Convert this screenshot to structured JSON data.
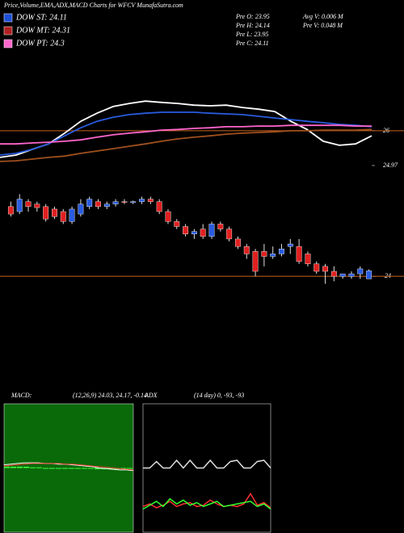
{
  "header": {
    "title": "Price,Volume,EMA,ADX,MACD Charts for WFCV MunafaSutra.com",
    "legend": [
      {
        "name": "DOW ST: 24.11",
        "color": "#1e4fd8"
      },
      {
        "name": "DOW MT: 24.31",
        "color": "#b02020"
      },
      {
        "name": "DOW PT: 24.3",
        "color": "#ff66cc"
      }
    ],
    "info": [
      "Pre  O: 23.95",
      "Pre  H: 24.14",
      "Pre  L: 23.95",
      "Pre  C: 24.11",
      "Avg  V: 0.006  M",
      "Pre  V: 0.048  M"
    ]
  },
  "chart_data": [
    {
      "type": "line",
      "ylim": [
        24.61,
        28.44
      ],
      "yticks": [
        26,
        24.97
      ],
      "reference_line": 26,
      "reference_color": "#c8641e",
      "series": [
        {
          "color": "#ffffff",
          "values": [
            25.21,
            25.28,
            25.45,
            25.61,
            25.93,
            26.28,
            26.52,
            26.72,
            26.81,
            26.88,
            26.84,
            26.81,
            26.76,
            26.74,
            26.76,
            26.69,
            26.64,
            26.57,
            26.28,
            26.04,
            25.69,
            25.57,
            25.61,
            25.85
          ]
        },
        {
          "color": "#2a5ce0",
          "values": [
            25.28,
            25.33,
            25.45,
            25.61,
            25.85,
            26.09,
            26.28,
            26.4,
            26.48,
            26.52,
            26.55,
            26.55,
            26.55,
            26.52,
            26.5,
            26.48,
            26.43,
            26.38,
            26.33,
            26.28,
            26.24,
            26.19,
            26.16,
            26.12
          ]
        },
        {
          "color": "#ff66cc",
          "values": [
            25.61,
            25.61,
            25.64,
            25.66,
            25.69,
            25.73,
            25.81,
            25.88,
            25.93,
            25.97,
            26.02,
            26.04,
            26.07,
            26.09,
            26.12,
            26.12,
            26.14,
            26.14,
            26.16,
            26.16,
            26.16,
            26.16,
            26.14,
            26.14
          ]
        },
        {
          "color": "#a0501e",
          "values": [
            25.09,
            25.11,
            25.16,
            25.21,
            25.25,
            25.33,
            25.4,
            25.47,
            25.54,
            25.61,
            25.69,
            25.76,
            25.81,
            25.85,
            25.9,
            25.93,
            25.95,
            25.97,
            26.0,
            26.0,
            26.02,
            26.02,
            26.02,
            26.04
          ]
        }
      ]
    },
    {
      "type": "candlestick",
      "ylim": [
        22.9,
        25.9
      ],
      "yticks": [
        24
      ],
      "reference_line": 24,
      "reference_color": "#c8641e",
      "up_color": "#2a5ce0",
      "down_color": "#e02020",
      "open": [
        25.4,
        25.3,
        25.5,
        25.45,
        25.4,
        25.35,
        25.3,
        25.1,
        25.25,
        25.4,
        25.5,
        25.4,
        25.45,
        25.5,
        25.48,
        25.5,
        25.55,
        25.5,
        25.3,
        25.1,
        25.0,
        24.85,
        24.95,
        24.8,
        25.05,
        24.95,
        24.75,
        24.6,
        24.5,
        24.5,
        24.4,
        24.45,
        24.6,
        24.6,
        24.45,
        24.25,
        24.2,
        24.1,
        24.0,
        24.0,
        24.05,
        23.95
      ],
      "high": [
        25.5,
        25.65,
        25.55,
        25.5,
        25.45,
        25.4,
        25.35,
        25.4,
        25.55,
        25.6,
        25.55,
        25.5,
        25.55,
        25.55,
        25.52,
        25.6,
        25.6,
        25.55,
        25.35,
        25.15,
        25.05,
        24.95,
        25.05,
        25.1,
        25.1,
        25.0,
        24.8,
        24.65,
        24.55,
        24.65,
        24.6,
        24.65,
        24.75,
        24.75,
        24.5,
        24.3,
        24.25,
        24.2,
        24.05,
        24.1,
        24.2,
        24.14
      ],
      "low": [
        25.2,
        25.25,
        25.3,
        25.3,
        25.1,
        25.15,
        25.05,
        25.05,
        25.2,
        25.35,
        25.35,
        25.35,
        25.4,
        25.45,
        25.45,
        25.45,
        25.45,
        25.25,
        25.05,
        24.95,
        24.8,
        24.75,
        24.75,
        24.75,
        24.9,
        24.7,
        24.55,
        24.35,
        24.0,
        24.2,
        24.35,
        24.4,
        24.45,
        24.25,
        24.2,
        24.05,
        23.85,
        23.9,
        23.95,
        23.95,
        23.95,
        23.95
      ],
      "close": [
        25.25,
        25.55,
        25.4,
        25.38,
        25.15,
        25.2,
        25.1,
        25.35,
        25.45,
        25.55,
        25.4,
        25.45,
        25.5,
        25.49,
        25.5,
        25.55,
        25.5,
        25.3,
        25.1,
        25.0,
        24.85,
        24.9,
        24.8,
        25.05,
        24.95,
        24.75,
        24.6,
        24.45,
        24.1,
        24.4,
        24.45,
        24.55,
        24.65,
        24.3,
        24.25,
        24.1,
        24.1,
        24.0,
        24.05,
        24.05,
        24.15,
        24.11
      ]
    },
    {
      "type": "macd",
      "label": "MACD:",
      "params": "(12,26,9) 24.03, 24.17, -0.14",
      "ylim": [
        -1,
        1
      ],
      "background": "#0a6a0a",
      "series": [
        {
          "color": "#ffffff",
          "values": [
            0.05,
            0.06,
            0.07,
            0.08,
            0.08,
            0.08,
            0.07,
            0.07,
            0.06,
            0.06,
            0.05,
            0.04,
            0.03,
            0.02,
            0.0,
            -0.01,
            -0.02,
            -0.03,
            -0.03,
            -0.04
          ]
        },
        {
          "color": "#ff4040",
          "values": [
            0.03,
            0.04,
            0.05,
            0.06,
            0.07,
            0.07,
            0.07,
            0.07,
            0.07,
            0.06,
            0.06,
            0.05,
            0.04,
            0.03,
            0.02,
            0.01,
            0.0,
            -0.01,
            -0.02,
            -0.03
          ]
        }
      ],
      "histogram": {
        "color": "#40ff40",
        "values": [
          0.02,
          0.02,
          0.02,
          0.02,
          0.01,
          0.01,
          0.0,
          0.0,
          -0.01,
          0.0,
          -0.01,
          -0.01,
          -0.01,
          -0.01,
          -0.02,
          -0.02,
          -0.02,
          -0.02,
          -0.01,
          -0.01
        ]
      }
    },
    {
      "type": "adx",
      "label": "ADX",
      "params": "(14 day) 0, -93, -93",
      "ylim": [
        0,
        100
      ],
      "series": [
        {
          "color": "#dddddd",
          "values": [
            50,
            50,
            55,
            50,
            50,
            56,
            50,
            56,
            50,
            50,
            56,
            50,
            50,
            55,
            56,
            50,
            50,
            55,
            56,
            50
          ]
        },
        {
          "color": "#ff3030",
          "values": [
            20,
            22,
            19,
            21,
            24,
            20,
            22,
            23,
            20,
            21,
            25,
            22,
            20,
            21,
            20,
            22,
            30,
            21,
            23,
            19
          ]
        },
        {
          "color": "#30ff30",
          "values": [
            18,
            21,
            24,
            20,
            26,
            22,
            25,
            21,
            23,
            20,
            22,
            24,
            20,
            21,
            22,
            23,
            24,
            20,
            22,
            18
          ]
        }
      ]
    }
  ]
}
